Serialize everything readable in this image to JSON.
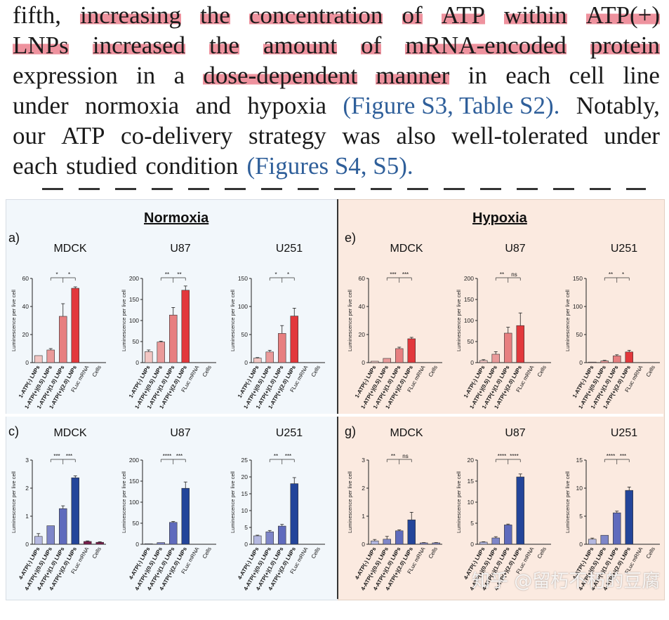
{
  "paper_text": {
    "lines": [
      [
        {
          "t": "fifth,"
        },
        {
          "t": "increasing",
          "h": true
        },
        {
          "t": "the",
          "h": true
        },
        {
          "t": "concentration",
          "h": true
        },
        {
          "t": "of",
          "h": true
        },
        {
          "t": "ATP",
          "h": true
        },
        {
          "t": "within",
          "h": true
        },
        {
          "t": "ATP(+)",
          "h": true
        }
      ],
      [
        {
          "t": "LNPs",
          "h": true
        },
        {
          "t": "increased",
          "h": true
        },
        {
          "t": "the",
          "h": true
        },
        {
          "t": "amount",
          "h": true
        },
        {
          "t": "of",
          "h": true
        },
        {
          "t": "mRNA-encoded",
          "h": true
        },
        {
          "t": "protein",
          "h": true
        }
      ],
      [
        {
          "t": "expression"
        },
        {
          "t": "in"
        },
        {
          "t": "a"
        },
        {
          "t": "dose-dependent",
          "h": true
        },
        {
          "t": "manner",
          "h": true
        },
        {
          "t": "in"
        },
        {
          "t": "each"
        },
        {
          "t": "cell"
        },
        {
          "t": "line"
        }
      ],
      [
        {
          "t": "under"
        },
        {
          "t": "normoxia"
        },
        {
          "t": "and"
        },
        {
          "t": "hypoxia"
        },
        {
          "t": "(Figure S3, Table S2).",
          "ref": true
        },
        {
          "t": "Notably,"
        }
      ],
      [
        {
          "t": "our"
        },
        {
          "t": "ATP"
        },
        {
          "t": "co-delivery"
        },
        {
          "t": "strategy"
        },
        {
          "t": "was"
        },
        {
          "t": "also"
        },
        {
          "t": "well-tolerated"
        },
        {
          "t": "under"
        }
      ],
      [
        {
          "t": "each"
        },
        {
          "t": "studied"
        },
        {
          "t": "condition"
        },
        {
          "t": "(Figures S4, S5).",
          "ref": true
        }
      ]
    ]
  },
  "figure": {
    "normoxia_title": "Normoxia",
    "hypoxia_title": "Hypoxia",
    "panel_a": "a)",
    "panel_e": "e)",
    "panel_c": "c)",
    "panel_g": "g)",
    "ylabel": "Luminescence per live cell",
    "colors": {
      "red_series": [
        "#f2c6c3",
        "#ea9a9a",
        "#e77f80",
        "#e2383c"
      ],
      "blue_series": [
        "#b4b8e0",
        "#7e86c9",
        "#5f6bbd",
        "#23459a"
      ],
      "control_norm": "#7a1e4c",
      "control_hyp": "#8b8ec7"
    }
  },
  "chart_data": [
    {
      "id": "a-mdck",
      "type": "bar",
      "title": "MDCK",
      "ylabel": "Luminescence per live cell",
      "ylim": [
        0,
        60
      ],
      "yticks": [
        0,
        20,
        40,
        60
      ],
      "categories": [
        "1-ATP(-) LNPs",
        "1-ATP(+)(0.5) LNPs",
        "1-ATP(+)(1.0) LNPs",
        "1-ATP(+)(2.0) LNPs",
        "FLuc mRNA",
        "Cells"
      ],
      "values": [
        5,
        9,
        33,
        53,
        0,
        0
      ],
      "errors": [
        0,
        1,
        9,
        1,
        0,
        0
      ],
      "colorset": "red",
      "sig": [
        "*",
        "*"
      ]
    },
    {
      "id": "a-u87",
      "type": "bar",
      "title": "U87",
      "ylabel": "Luminescence per live cell",
      "ylim": [
        0,
        200
      ],
      "yticks": [
        0,
        50,
        100,
        150,
        200
      ],
      "categories": [
        "1-ATP(-) LNPs",
        "1-ATP(+)(0.5) LNPs",
        "1-ATP(+)(1.0) LNPs",
        "1-ATP(+)(2.0) LNPs",
        "FLuc mRNA",
        "Cells"
      ],
      "values": [
        26,
        49,
        113,
        172,
        0,
        0
      ],
      "errors": [
        4,
        2,
        18,
        10,
        0,
        0
      ],
      "colorset": "red",
      "sig": [
        "**",
        "**"
      ]
    },
    {
      "id": "a-u251",
      "type": "bar",
      "title": "U251",
      "ylabel": "Luminescence per live cell",
      "ylim": [
        0,
        150
      ],
      "yticks": [
        0,
        50,
        100,
        150
      ],
      "categories": [
        "1-ATP(-) LNPs",
        "1-ATP(+)(0.5) LNPs",
        "1-ATP(+)(1.0) LNPs",
        "1-ATP(+)(2.0) LNPs",
        "FLuc mRNA",
        "Cells"
      ],
      "values": [
        8,
        19,
        52,
        83,
        0,
        0
      ],
      "errors": [
        1,
        3,
        14,
        14,
        0,
        0
      ],
      "colorset": "red",
      "sig": [
        "*",
        "*"
      ]
    },
    {
      "id": "e-mdck",
      "type": "bar",
      "title": "MDCK",
      "ylabel": "Luminescence per live cell",
      "ylim": [
        0,
        60
      ],
      "yticks": [
        0,
        20,
        40,
        60
      ],
      "categories": [
        "1-ATP(-) LNPs",
        "1-ATP(+)(0.5) LNPs",
        "1-ATP(+)(1.0) LNPs",
        "1-ATP(+)(2.0) LNPs",
        "FLuc mRNA",
        "Cells"
      ],
      "values": [
        1,
        3,
        10,
        17,
        0,
        0
      ],
      "errors": [
        0,
        0,
        1,
        1,
        0,
        0
      ],
      "colorset": "red",
      "sig": [
        "***",
        "***"
      ]
    },
    {
      "id": "e-u87",
      "type": "bar",
      "title": "U87",
      "ylabel": "Luminescence per live cell",
      "ylim": [
        0,
        200
      ],
      "yticks": [
        0,
        50,
        100,
        150,
        200
      ],
      "categories": [
        "1-ATP(-) LNPs",
        "1-ATP(+)(0.5) LNPs",
        "1-ATP(+)(1.0) LNPs",
        "1-ATP(+)(2.0) LNPs",
        "FLuc mRNA",
        "Cells"
      ],
      "values": [
        5,
        20,
        70,
        88,
        0,
        0
      ],
      "errors": [
        2,
        6,
        14,
        30,
        0,
        0
      ],
      "colorset": "red",
      "sig": [
        "**",
        "ns"
      ]
    },
    {
      "id": "e-u251",
      "type": "bar",
      "title": "U251",
      "ylabel": "Luminescence per live cell",
      "ylim": [
        0,
        150
      ],
      "yticks": [
        0,
        50,
        100,
        150
      ],
      "categories": [
        "1-ATP(-) LNPs",
        "1-ATP(+)(0.5) LNPs",
        "1-ATP(+)(1.0) LNPs",
        "1-ATP(+)(2.0) LNPs",
        "FLuc mRNA",
        "Cells"
      ],
      "values": [
        1,
        3,
        12,
        19,
        0,
        0
      ],
      "errors": [
        0,
        1,
        2,
        3,
        0,
        0
      ],
      "colorset": "red",
      "sig": [
        "**",
        "*"
      ]
    },
    {
      "id": "c-mdck",
      "type": "bar",
      "title": "MDCK",
      "ylabel": "Luminescence per live cell",
      "ylim": [
        0,
        3
      ],
      "yticks": [
        0,
        1,
        2,
        3
      ],
      "categories": [
        "4-ATP(-) LNPs",
        "4-ATP(+)(0.5) LNPs",
        "4-ATP(+)(1.0) LNPs",
        "4-ATP(+)(2.0) LNPs",
        "FLuc mRNA",
        "Cells"
      ],
      "values": [
        0.28,
        0.66,
        1.27,
        2.37,
        0.1,
        0.07
      ],
      "errors": [
        0.1,
        0,
        0.1,
        0.07,
        0.02,
        0.02
      ],
      "colorset": "blue",
      "ctrl": "norm",
      "sig": [
        "***",
        "***"
      ]
    },
    {
      "id": "c-u87",
      "type": "bar",
      "title": "U87",
      "ylabel": "Luminescence per live cell",
      "ylim": [
        0,
        200
      ],
      "yticks": [
        0,
        50,
        100,
        150,
        200
      ],
      "categories": [
        "4-ATP(-) LNPs",
        "4-ATP(+)(0.5) LNPs",
        "4-ATP(+)(1.0) LNPs",
        "4-ATP(+)(2.0) LNPs",
        "FLuc mRNA",
        "Cells"
      ],
      "values": [
        1,
        4,
        52,
        133,
        0,
        0
      ],
      "errors": [
        0,
        0,
        2,
        15,
        0,
        0
      ],
      "colorset": "blue",
      "ctrl": "norm",
      "sig": [
        "****",
        "***"
      ]
    },
    {
      "id": "c-u251",
      "type": "bar",
      "title": "U251",
      "ylabel": "Luminescence per live cell",
      "ylim": [
        0,
        25
      ],
      "yticks": [
        0,
        5,
        10,
        15,
        20,
        25
      ],
      "categories": [
        "4-ATP(-) LNPs",
        "4-ATP(+)(0.5) LNPs",
        "4-ATP(+)(1.0) LNPs",
        "4-ATP(+)(2.0) LNPs",
        "FLuc mRNA",
        "Cells"
      ],
      "values": [
        2.5,
        3.7,
        5.4,
        18,
        0,
        0
      ],
      "errors": [
        0.2,
        0.4,
        0.5,
        1.8,
        0,
        0
      ],
      "colorset": "blue",
      "ctrl": "norm",
      "sig": [
        "**",
        "***"
      ]
    },
    {
      "id": "g-mdck",
      "type": "bar",
      "title": "MDCK",
      "ylabel": "Luminescence per live cell",
      "ylim": [
        0,
        3
      ],
      "yticks": [
        0,
        1,
        2,
        3
      ],
      "categories": [
        "4-ATP(-) LNPs",
        "4-ATP(+)(0.5) LNPs",
        "4-ATP(+)(1.0) LNPs",
        "4-ATP(+)(2.0) LNPs",
        "FLuc mRNA",
        "Cells"
      ],
      "values": [
        0.12,
        0.18,
        0.48,
        0.87,
        0.05,
        0.05
      ],
      "errors": [
        0.05,
        0.1,
        0.03,
        0.27,
        0.01,
        0.01
      ],
      "colorset": "blue",
      "ctrl": "hyp",
      "sig": [
        "**",
        "ns"
      ]
    },
    {
      "id": "g-u87",
      "type": "bar",
      "title": "U87",
      "ylabel": "Luminescence per live cell",
      "ylim": [
        0,
        20
      ],
      "yticks": [
        0,
        5,
        10,
        15,
        20
      ],
      "categories": [
        "4-ATP(-) LNPs",
        "4-ATP(+)(0.5) LNPs",
        "4-ATP(+)(1.0) LNPs",
        "4-ATP(+)(2.0) LNPs",
        "FLuc mRNA",
        "Cells"
      ],
      "values": [
        0.5,
        1.5,
        4.6,
        16,
        0,
        0
      ],
      "errors": [
        0.1,
        0.3,
        0.2,
        0.7,
        0,
        0
      ],
      "colorset": "blue",
      "ctrl": "hyp",
      "sig": [
        "****",
        "****"
      ]
    },
    {
      "id": "g-u251",
      "type": "bar",
      "title": "U251",
      "ylabel": "Luminescence per live cell",
      "ylim": [
        0,
        15
      ],
      "yticks": [
        0,
        5,
        10,
        15
      ],
      "categories": [
        "4-ATP(-) LNPs",
        "4-ATP(+)(0.5) LNPs",
        "4-ATP(+)(1.0) LNPs",
        "4-ATP(+)(2.0) LNPs",
        "FLuc mRNA",
        "Cells"
      ],
      "values": [
        0.9,
        1.6,
        5.6,
        9.6,
        0,
        0
      ],
      "errors": [
        0.2,
        0,
        0.3,
        0.6,
        0,
        0
      ],
      "colorset": "blue",
      "ctrl": "hyp",
      "sig": [
        "****",
        "***"
      ]
    }
  ],
  "watermark": "知乎 @留朽不朽的豆腐"
}
